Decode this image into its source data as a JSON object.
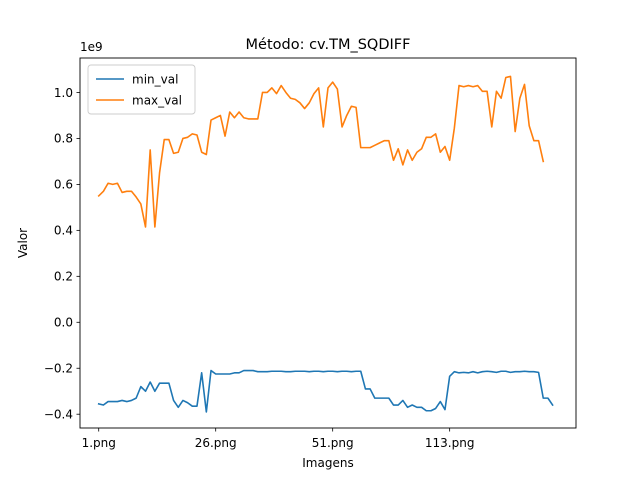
{
  "chart_data": {
    "type": "line",
    "title": "Método: cv.TM_SQDIFF",
    "xlabel": "Imagens",
    "ylabel": "Valor",
    "y_offset_label": "1e9",
    "x_tick_labels": [
      "1.png",
      "26.png",
      "51.png",
      "113.png"
    ],
    "x_tick_positions": [
      0,
      25,
      50,
      75
    ],
    "y_ticks": [
      -0.4,
      -0.2,
      0.0,
      0.2,
      0.4,
      0.6,
      0.8,
      1.0
    ],
    "y_tick_labels": [
      "−0.4",
      "−0.2",
      "0.0",
      "0.2",
      "0.4",
      "0.6",
      "0.8",
      "1.0"
    ],
    "xlim": [
      -4,
      102
    ],
    "ylim": [
      -0.46,
      1.15
    ],
    "grid": false,
    "legend_position": "upper-left",
    "series": [
      {
        "name": "min_val",
        "color": "#1f77b4",
        "values": [
          -0.355,
          -0.36,
          -0.345,
          -0.345,
          -0.345,
          -0.34,
          -0.345,
          -0.34,
          -0.33,
          -0.28,
          -0.3,
          -0.26,
          -0.3,
          -0.265,
          -0.265,
          -0.265,
          -0.34,
          -0.37,
          -0.34,
          -0.35,
          -0.365,
          -0.365,
          -0.22,
          -0.39,
          -0.21,
          -0.225,
          -0.225,
          -0.225,
          -0.225,
          -0.22,
          -0.22,
          -0.21,
          -0.21,
          -0.21,
          -0.215,
          -0.215,
          -0.215,
          -0.213,
          -0.213,
          -0.213,
          -0.215,
          -0.215,
          -0.213,
          -0.213,
          -0.213,
          -0.215,
          -0.213,
          -0.213,
          -0.215,
          -0.213,
          -0.213,
          -0.215,
          -0.213,
          -0.213,
          -0.215,
          -0.213,
          -0.213,
          -0.29,
          -0.29,
          -0.33,
          -0.33,
          -0.33,
          -0.33,
          -0.36,
          -0.36,
          -0.34,
          -0.37,
          -0.36,
          -0.37,
          -0.37,
          -0.385,
          -0.385,
          -0.375,
          -0.345,
          -0.38,
          -0.235,
          -0.215,
          -0.22,
          -0.218,
          -0.22,
          -0.215,
          -0.22,
          -0.215,
          -0.213,
          -0.215,
          -0.218,
          -0.213,
          -0.213,
          -0.218,
          -0.215,
          -0.215,
          -0.213,
          -0.215,
          -0.215,
          -0.218,
          -0.33,
          -0.33,
          -0.36
        ]
      },
      {
        "name": "max_val",
        "color": "#ff7f0e",
        "values": [
          0.55,
          0.57,
          0.605,
          0.6,
          0.605,
          0.565,
          0.57,
          0.57,
          0.545,
          0.515,
          0.415,
          0.75,
          0.415,
          0.65,
          0.795,
          0.795,
          0.735,
          0.74,
          0.8,
          0.805,
          0.82,
          0.815,
          0.74,
          0.73,
          0.88,
          0.89,
          0.9,
          0.81,
          0.915,
          0.89,
          0.915,
          0.89,
          0.885,
          0.885,
          0.885,
          1.0,
          1.0,
          1.02,
          0.995,
          1.03,
          1.0,
          0.975,
          0.97,
          0.955,
          0.93,
          0.955,
          0.995,
          1.02,
          0.85,
          1.02,
          1.045,
          1.015,
          0.85,
          0.9,
          0.94,
          0.935,
          0.76,
          0.76,
          0.76,
          0.77,
          0.78,
          0.79,
          0.79,
          0.705,
          0.755,
          0.685,
          0.75,
          0.705,
          0.74,
          0.755,
          0.805,
          0.805,
          0.82,
          0.74,
          0.765,
          0.705,
          0.845,
          1.03,
          1.025,
          1.03,
          1.025,
          1.03,
          1.005,
          1.005,
          0.85,
          1.005,
          0.975,
          1.065,
          1.07,
          0.83,
          0.975,
          1.035,
          0.855,
          0.79,
          0.79,
          0.7
        ]
      }
    ]
  }
}
